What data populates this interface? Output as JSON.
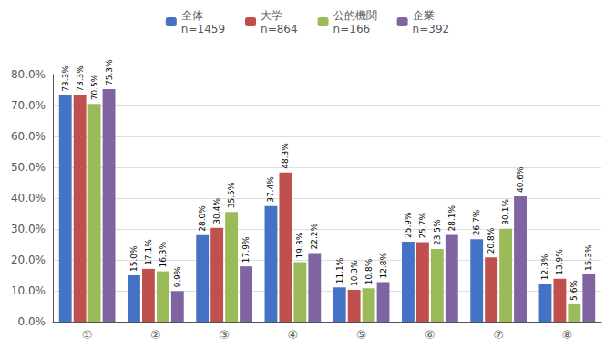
{
  "chart_data": {
    "type": "bar",
    "categories": [
      "①",
      "②",
      "③",
      "④",
      "⑤",
      "⑥",
      "⑦",
      "⑧"
    ],
    "series": [
      {
        "name": "全体",
        "color": "#4472C4",
        "annotation": "n=1459",
        "values": [
          73.3,
          15.0,
          28.0,
          37.4,
          11.1,
          25.9,
          26.7,
          12.3
        ],
        "value_labels": [
          "73.3%",
          "15.0%",
          "28.0%",
          "37.4%",
          "11.1%",
          "25.9%",
          "26.7%",
          "12.3%"
        ]
      },
      {
        "name": "大学",
        "color": "#C0504D",
        "annotation": "n=864",
        "values": [
          73.3,
          17.1,
          30.4,
          48.3,
          10.3,
          25.7,
          20.8,
          13.9
        ],
        "value_labels": [
          "73.3%",
          "17.1%",
          "30.4%",
          "48.3%",
          "10.3%",
          "25.7%",
          "20.8%",
          "13.9%"
        ]
      },
      {
        "name": "公的機関",
        "color": "#9BBB59",
        "annotation": "n=166",
        "values": [
          70.5,
          16.3,
          35.5,
          19.3,
          10.8,
          23.5,
          30.1,
          5.6
        ],
        "value_labels": [
          "70.5%",
          "16.3%",
          "35.5%",
          "19.3%",
          "10.8%",
          "23.5%",
          "30.1%",
          "5.6%"
        ]
      },
      {
        "name": "企業",
        "color": "#8064A2",
        "annotation": "n=392",
        "values": [
          75.3,
          9.9,
          17.9,
          22.2,
          12.8,
          28.1,
          40.6,
          15.3
        ],
        "value_labels": [
          "75.3%",
          "9.9%",
          "17.9%",
          "22.2%",
          "12.8%",
          "28.1%",
          "40.6%",
          "15.3%"
        ]
      }
    ],
    "ylim": [
      0,
      80
    ],
    "yticks": [
      {
        "value": 0,
        "label": "0.0%"
      },
      {
        "value": 10,
        "label": "10.0%"
      },
      {
        "value": 20,
        "label": "20.0%"
      },
      {
        "value": 30,
        "label": "30.0%"
      },
      {
        "value": 40,
        "label": "40.0%"
      },
      {
        "value": 50,
        "label": "50.0%"
      },
      {
        "value": 60,
        "label": "60.0%"
      },
      {
        "value": 70,
        "label": "70.0%"
      },
      {
        "value": 80,
        "label": "80.0%"
      }
    ],
    "grid": true,
    "legend": "top",
    "data_labels": true
  }
}
